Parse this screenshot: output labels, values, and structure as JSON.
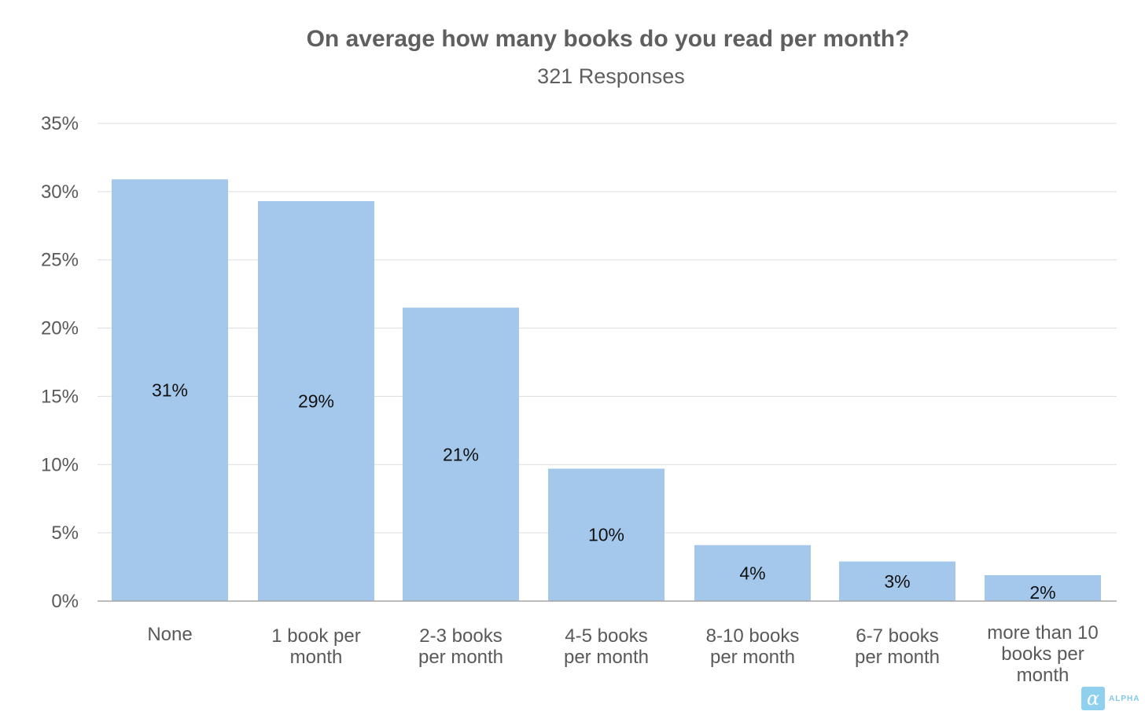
{
  "chart_data": {
    "type": "bar",
    "title": "On average how many books do you read per month?",
    "subtitle": "321 Responses",
    "categories": [
      [
        "None"
      ],
      [
        "1 book per",
        "month"
      ],
      [
        "2-3 books",
        "per month"
      ],
      [
        "4-5 books",
        "per month"
      ],
      [
        "8-10 books",
        "per month"
      ],
      [
        "6-7 books",
        "per month"
      ],
      [
        "more than 10",
        "books per",
        "month"
      ]
    ],
    "values": [
      30.9,
      29.3,
      21.5,
      9.7,
      4.1,
      2.9,
      1.9
    ],
    "data_labels": [
      "31%",
      "29%",
      "21%",
      "10%",
      "4%",
      "3%",
      "2%"
    ],
    "yticks": [
      0,
      5,
      10,
      15,
      20,
      25,
      30,
      35
    ],
    "ytick_labels": [
      "0%",
      "5%",
      "10%",
      "15%",
      "20%",
      "25%",
      "30%",
      "35%"
    ],
    "ylim": [
      0,
      35
    ],
    "grid": true,
    "bar_color": "#a3c8ec",
    "xlabel": "",
    "ylabel": ""
  },
  "watermark": {
    "text": "ALPHA",
    "glyph": "α",
    "color": "#7fc8ea"
  }
}
